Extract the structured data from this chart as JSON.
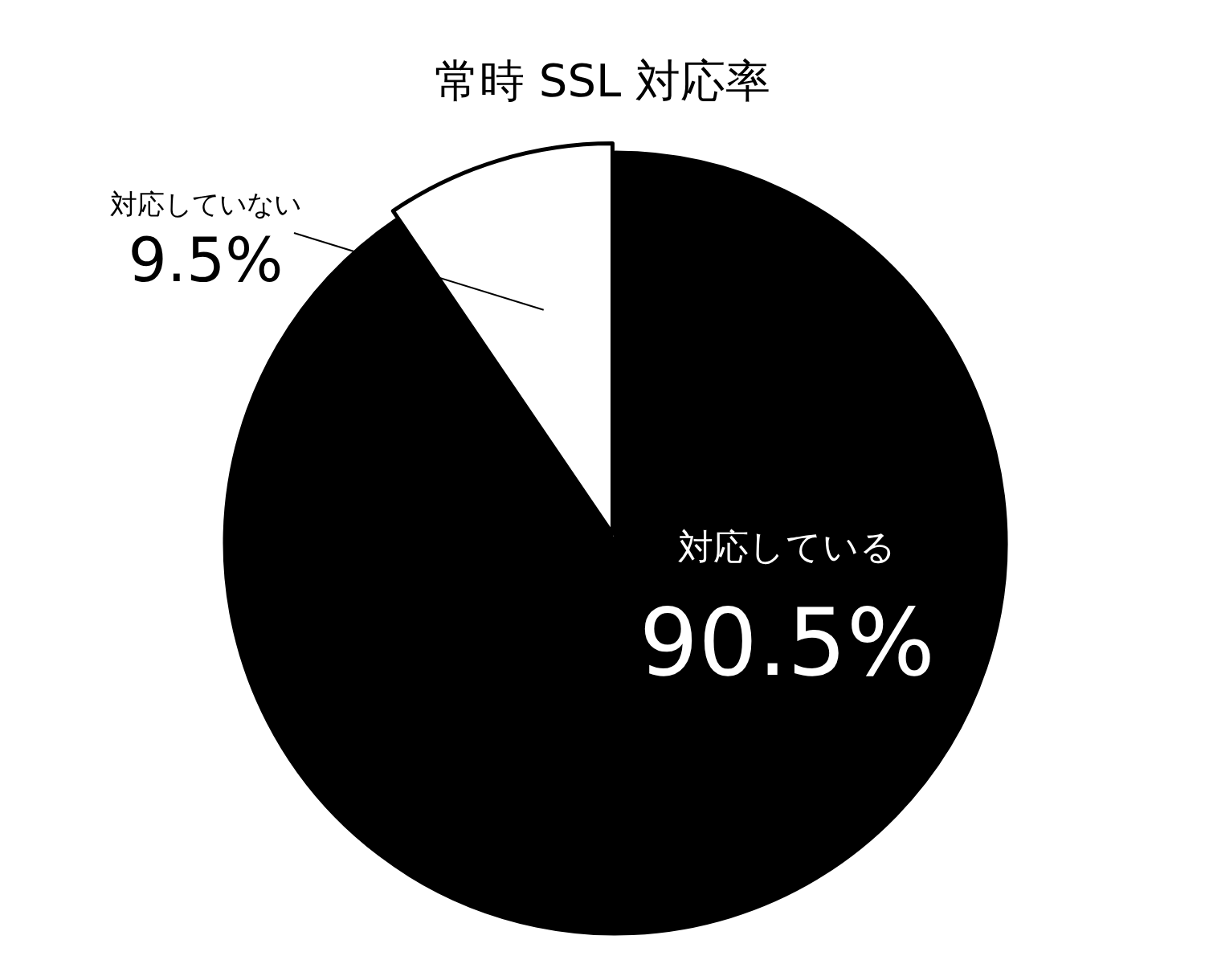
{
  "chart_data": {
    "type": "pie",
    "title": "常時 SSL 対応率",
    "categories": [
      "対応している",
      "対応していない"
    ],
    "values": [
      90.5,
      9.5
    ],
    "colors": [
      "#000000",
      "#ffffff"
    ],
    "value_labels": [
      "90.5%",
      "9.5%"
    ]
  }
}
